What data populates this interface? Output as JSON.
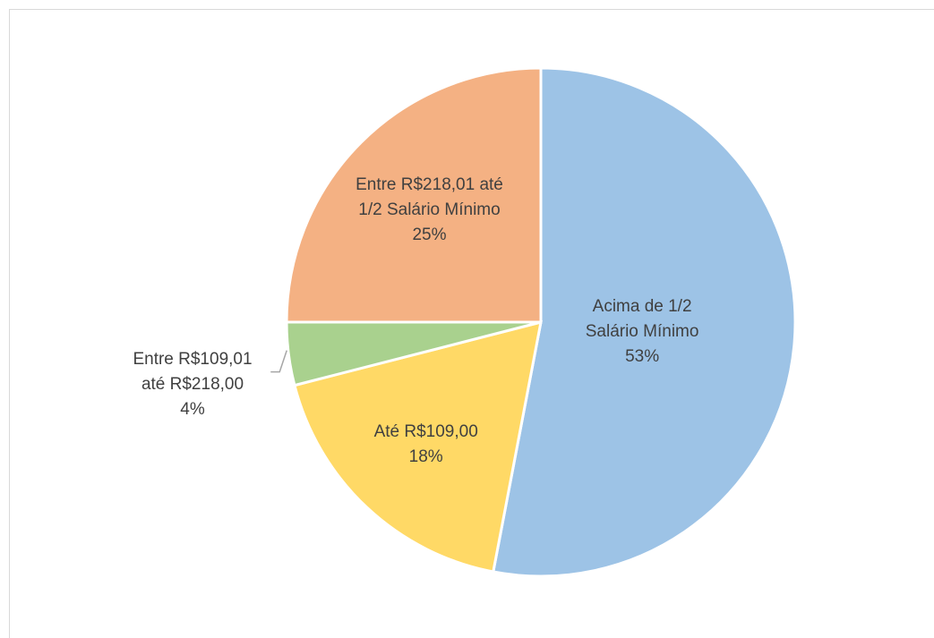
{
  "chart_data": {
    "type": "pie",
    "categories": [
      "Acima de 1/2 Salário Mínimo",
      "Até R$109,00",
      "Entre R$109,01 até R$218,00",
      "Entre R$218,01 até 1/2 Salário Mínimo"
    ],
    "values": [
      53,
      18,
      4,
      25
    ],
    "value_labels": [
      "53%",
      "18%",
      "4%",
      "25%"
    ],
    "colors": [
      "#9dc3e6",
      "#ffd966",
      "#a9d18e",
      "#f4b183"
    ]
  }
}
